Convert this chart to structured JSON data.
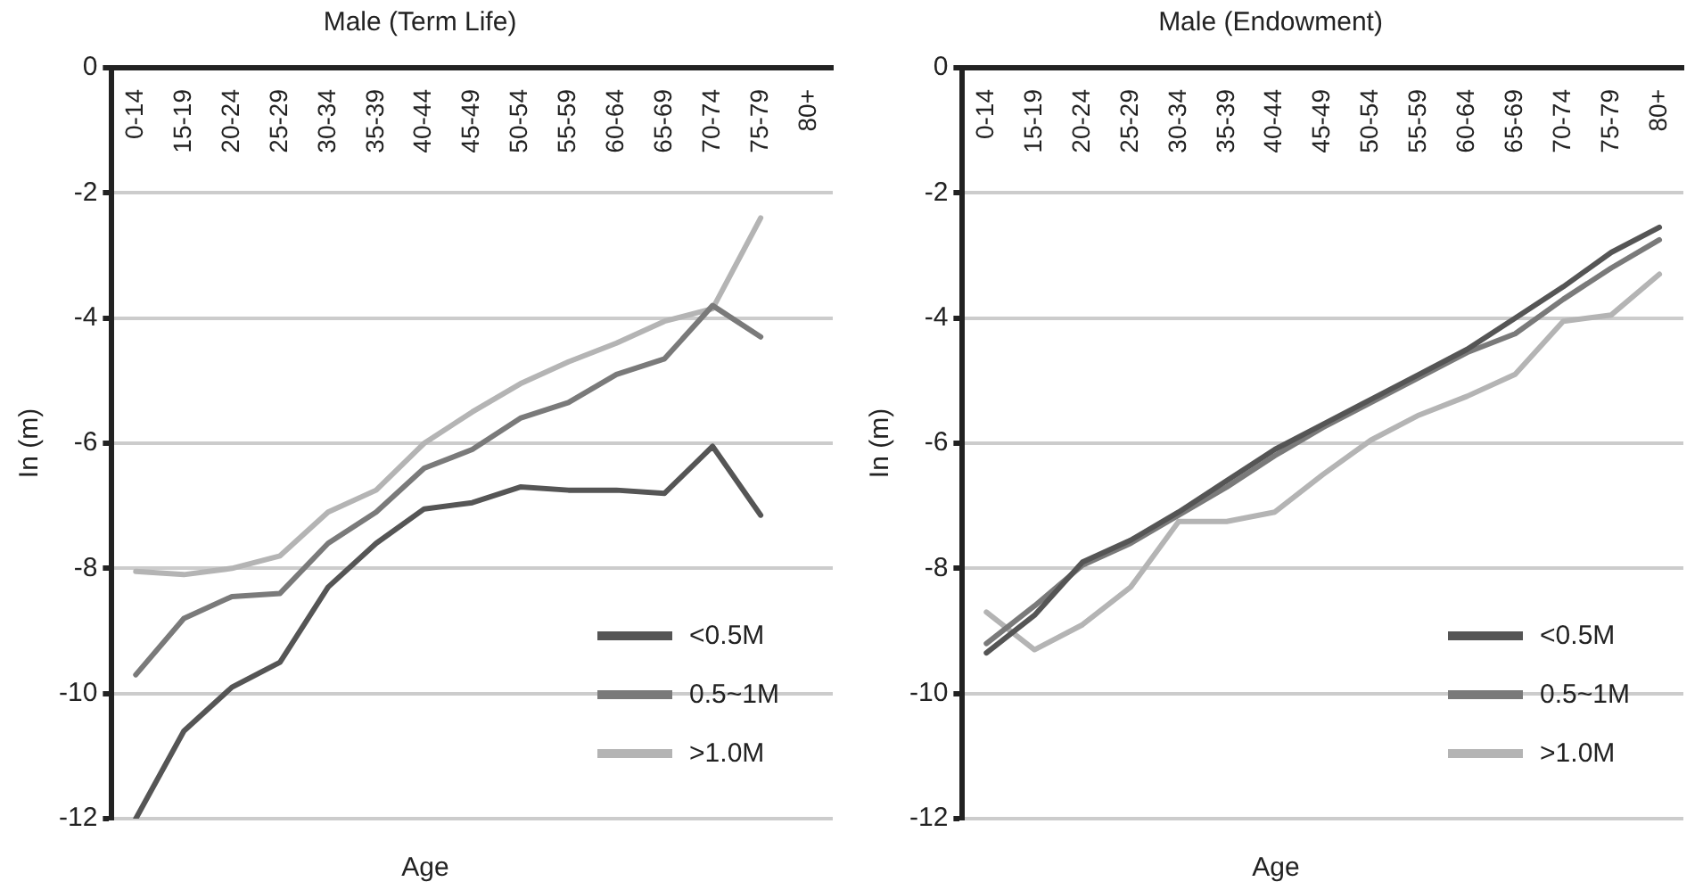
{
  "chart_data": [
    {
      "type": "line",
      "title": "Male (Term Life)",
      "xlabel": "Age",
      "ylabel": "In (m)",
      "categories": [
        "0-14",
        "15-19",
        "20-24",
        "25-29",
        "30-34",
        "35-39",
        "40-44",
        "45-49",
        "50-54",
        "55-59",
        "60-64",
        "65-69",
        "70-74",
        "75-79",
        "80+"
      ],
      "ylim": [
        -12,
        0
      ],
      "yticks": [
        -12,
        -10,
        -8,
        -6,
        -4,
        -2,
        0
      ],
      "grid": "y",
      "legend": "bottom right",
      "marker": "none",
      "line_style": "solid",
      "series": [
        {
          "name": "<0.5M",
          "color": "#555555",
          "values": [
            -12,
            -10.6,
            -9.9,
            -9.5,
            -8.3,
            -7.6,
            -7.05,
            -6.95,
            -6.7,
            -6.75,
            -6.75,
            -6.8,
            -6.05,
            -7.15,
            null
          ]
        },
        {
          "name": "0.5~1M",
          "color": "#7a7a7a",
          "values": [
            -9.7,
            -8.8,
            -8.45,
            -8.4,
            -7.6,
            -7.1,
            -6.4,
            -6.1,
            -5.6,
            -5.35,
            -4.9,
            -4.65,
            -3.8,
            -4.3,
            null
          ]
        },
        {
          "name": ">1.0M",
          "color": "#b4b4b4",
          "values": [
            -8.05,
            -8.1,
            -8.0,
            -7.8,
            -7.1,
            -6.75,
            -6.0,
            -5.5,
            -5.05,
            -4.7,
            -4.4,
            -4.05,
            -3.85,
            -2.4,
            null
          ]
        }
      ]
    },
    {
      "type": "line",
      "title": "Male (Endowment)",
      "xlabel": "Age",
      "ylabel": "In (m)",
      "categories": [
        "0-14",
        "15-19",
        "20-24",
        "25-29",
        "30-34",
        "35-39",
        "40-44",
        "45-49",
        "50-54",
        "55-59",
        "60-64",
        "65-69",
        "70-74",
        "75-79",
        "80+"
      ],
      "ylim": [
        -12,
        0
      ],
      "yticks": [
        -12,
        -10,
        -8,
        -6,
        -4,
        -2,
        0
      ],
      "grid": "y",
      "legend": "bottom right",
      "marker": "none",
      "line_style": "solid",
      "series": [
        {
          "name": "<0.5M",
          "color": "#555555",
          "values": [
            -9.35,
            -8.75,
            -7.9,
            -7.55,
            -7.1,
            -6.6,
            -6.1,
            -5.7,
            -5.3,
            -4.9,
            -4.5,
            -4.0,
            -3.5,
            -2.95,
            -2.55
          ]
        },
        {
          "name": "0.5~1M",
          "color": "#7a7a7a",
          "values": [
            -9.2,
            -8.6,
            -7.95,
            -7.6,
            -7.15,
            -6.7,
            -6.2,
            -5.75,
            -5.35,
            -4.95,
            -4.55,
            -4.25,
            -3.7,
            -3.2,
            -2.75
          ]
        },
        {
          "name": ">1.0M",
          "color": "#b4b4b4",
          "values": [
            -8.7,
            -9.3,
            -8.9,
            -8.3,
            -7.25,
            -7.25,
            -7.1,
            -6.5,
            -5.95,
            -5.55,
            -5.25,
            -4.9,
            -4.05,
            -3.95,
            -3.3
          ]
        }
      ]
    }
  ]
}
